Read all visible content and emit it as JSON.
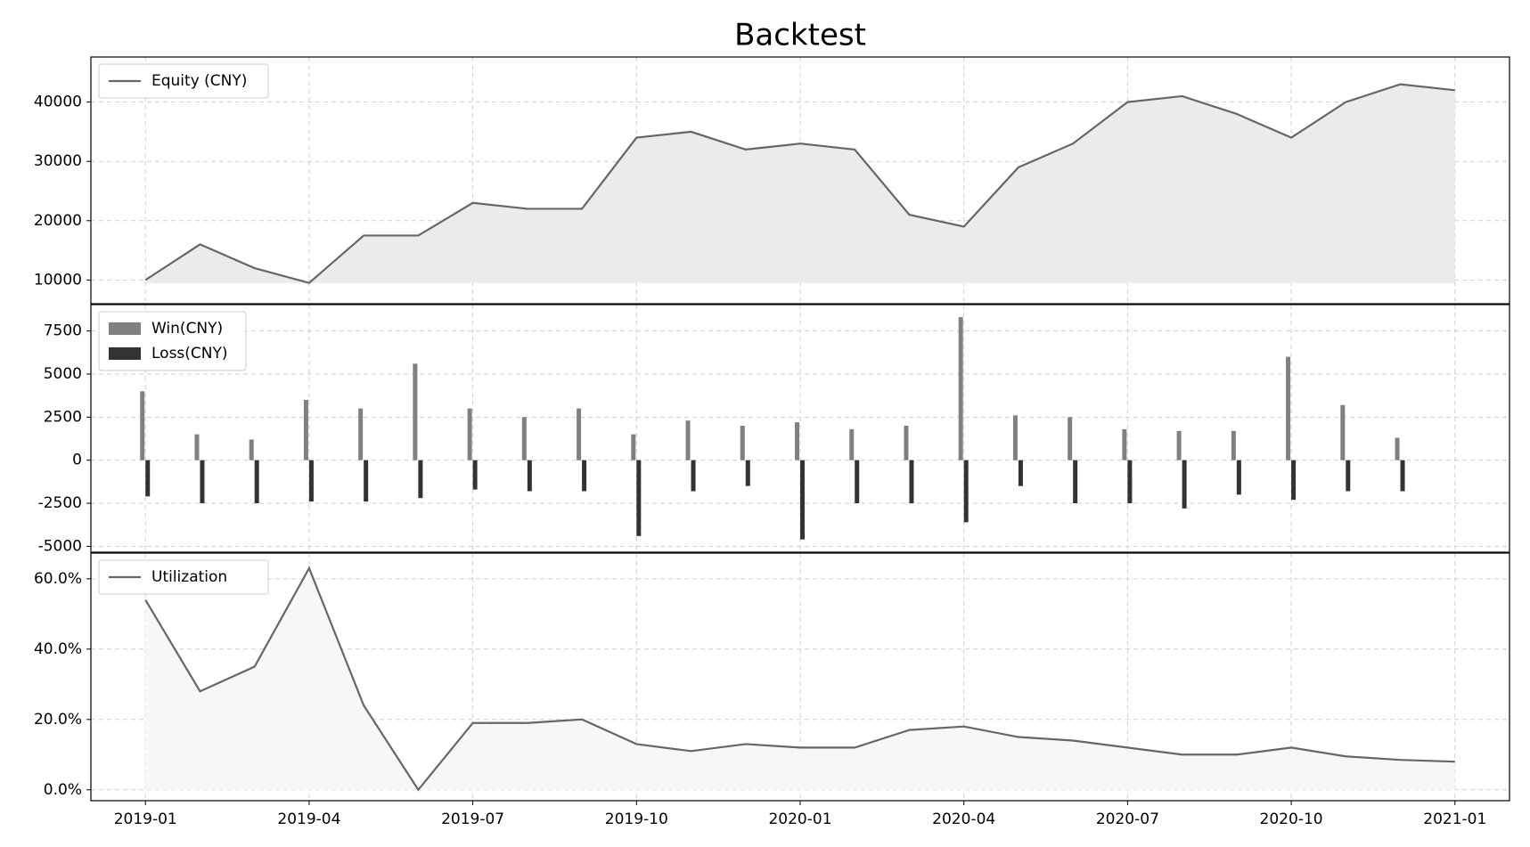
{
  "title": "Backtest",
  "chart_data": [
    {
      "type": "line",
      "legend": "upper left",
      "fill_color": "#ebebeb",
      "x": [
        "2019-01",
        "2019-02",
        "2019-03",
        "2019-04",
        "2019-05",
        "2019-06",
        "2019-07",
        "2019-08",
        "2019-09",
        "2019-10",
        "2019-11",
        "2019-12",
        "2020-01",
        "2020-02",
        "2020-03",
        "2020-04",
        "2020-05",
        "2020-06",
        "2020-07",
        "2020-08",
        "2020-09",
        "2020-10",
        "2020-11",
        "2020-12",
        "2021-01"
      ],
      "series": [
        {
          "name": "Equity (CNY)",
          "color": "#666666",
          "values": [
            10000,
            16000,
            12000,
            9500,
            17500,
            17500,
            23000,
            22000,
            22000,
            34000,
            35000,
            32000,
            33000,
            32000,
            21000,
            19000,
            29000,
            33000,
            40000,
            41000,
            38000,
            34000,
            40000,
            43000,
            42000
          ]
        }
      ],
      "ylim": [
        6000,
        47600
      ],
      "yticks": [
        10000,
        20000,
        30000,
        40000
      ],
      "grid": true
    },
    {
      "type": "bar",
      "legend": "upper left",
      "x": [
        "2019-01",
        "2019-02",
        "2019-03",
        "2019-04",
        "2019-05",
        "2019-06",
        "2019-07",
        "2019-08",
        "2019-09",
        "2019-10",
        "2019-11",
        "2019-12",
        "2020-01",
        "2020-02",
        "2020-03",
        "2020-04",
        "2020-05",
        "2020-06",
        "2020-07",
        "2020-08",
        "2020-09",
        "2020-10",
        "2020-11",
        "2020-12"
      ],
      "series": [
        {
          "name": "Win(CNY)",
          "color": "#808080",
          "values": [
            4000,
            1500,
            1200,
            3500,
            3000,
            5600,
            3000,
            2500,
            3000,
            1500,
            2300,
            2000,
            2200,
            1800,
            2000,
            8300,
            2600,
            2500,
            1800,
            1700,
            1700,
            6000,
            3200,
            1300
          ]
        },
        {
          "name": "Loss(CNY)",
          "color": "#333333",
          "values": [
            -2100,
            -2500,
            -2500,
            -2400,
            -2400,
            -2200,
            -1700,
            -1800,
            -1800,
            -4400,
            -1800,
            -1500,
            -4600,
            -2500,
            -2500,
            -3600,
            -1500,
            -2500,
            -2500,
            -2800,
            -2000,
            -2300,
            -1800,
            -1800
          ]
        }
      ],
      "ylim": [
        -5340,
        9030
      ],
      "yticks": [
        -5000,
        -2500,
        0,
        2500,
        5000,
        7500
      ],
      "grid": true
    },
    {
      "type": "line",
      "legend": "upper left",
      "fill_color": "#f7f7f7",
      "x": [
        "2019-01",
        "2019-02",
        "2019-03",
        "2019-04",
        "2019-05",
        "2019-06",
        "2019-07",
        "2019-08",
        "2019-09",
        "2019-10",
        "2019-11",
        "2019-12",
        "2020-01",
        "2020-02",
        "2020-03",
        "2020-04",
        "2020-05",
        "2020-06",
        "2020-07",
        "2020-08",
        "2020-09",
        "2020-10",
        "2020-11",
        "2020-12",
        "2021-01"
      ],
      "series": [
        {
          "name": "Utilization",
          "color": "#666666",
          "values": [
            54,
            28,
            35,
            63,
            24,
            0,
            19,
            19,
            20,
            13,
            11,
            13,
            12,
            12,
            17,
            18,
            15,
            14,
            12,
            10,
            10,
            12,
            9.5,
            8.5,
            8
          ]
        }
      ],
      "ylim": [
        -3.1,
        67.3
      ],
      "yticks": [
        {
          "value": 0,
          "label": "0.0%"
        },
        {
          "value": 20,
          "label": "20.0%"
        },
        {
          "value": 40,
          "label": "40.0%"
        },
        {
          "value": 60,
          "label": "60.0%"
        }
      ],
      "xlim": [
        "2018-12",
        "2021-02"
      ],
      "xticks": [
        "2019-01",
        "2019-04",
        "2019-07",
        "2019-10",
        "2020-01",
        "2020-04",
        "2020-07",
        "2020-10",
        "2021-01"
      ],
      "grid": true
    }
  ]
}
